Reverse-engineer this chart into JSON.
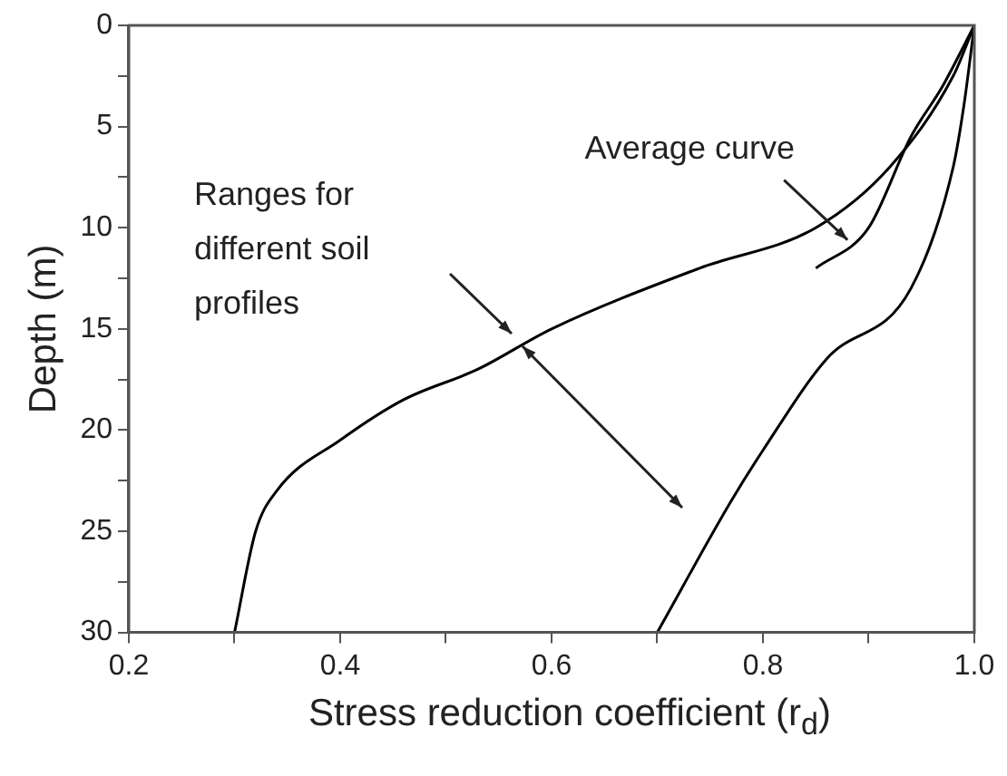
{
  "chart_data": {
    "type": "line",
    "xlabel": "Stress reduction coefficient (r$_{d}$)",
    "ylabel": "Depth (m)",
    "xlim": [
      0.2,
      1.0
    ],
    "xticks": [
      0.2,
      {
        "value": 0.3,
        "label": null
      },
      0.4,
      {
        "value": 0.5,
        "label": null
      },
      0.6,
      {
        "value": 0.7,
        "label": null
      },
      0.8,
      {
        "value": 0.9,
        "label": null
      },
      {
        "value": 1,
        "label": "1.0"
      }
    ],
    "ylim": [
      30,
      0
    ],
    "yticks": [
      0,
      {
        "value": 2.5,
        "label": null
      },
      5,
      {
        "value": 7.5,
        "label": null
      },
      10,
      {
        "value": 12.5,
        "label": null
      },
      15,
      {
        "value": 17.5,
        "label": null
      },
      20,
      {
        "value": 22.5,
        "label": null
      },
      25,
      {
        "value": 27.5,
        "label": null
      },
      30
    ],
    "series": [
      {
        "color": "#000000",
        "x": [
          0.3,
          0.32,
          0.34,
          0.4,
          0.46,
          0.53,
          0.6,
          0.74,
          0.85,
          0.92,
          0.98,
          1.0
        ],
        "values": [
          30,
          25,
          23,
          20.5,
          18.5,
          17,
          15,
          12,
          10,
          7,
          2.5,
          0
        ]
      },
      {
        "color": "#000000",
        "x": [
          0.7,
          0.77,
          0.8,
          0.86,
          0.94,
          0.98,
          0.99,
          1.0
        ],
        "values": [
          30,
          23.5,
          21,
          16.5,
          13,
          7,
          4,
          0
        ]
      },
      {
        "color": "#000000",
        "x": [
          0.85,
          0.9,
          0.94,
          0.97,
          1.0
        ],
        "values": [
          12,
          10,
          5.5,
          3,
          0
        ]
      }
    ],
    "annotations": [
      {
        "text": "Average curve",
        "x": 0.88,
        "y": 10.6
      },
      "Ranges for different soil profiles"
    ]
  }
}
